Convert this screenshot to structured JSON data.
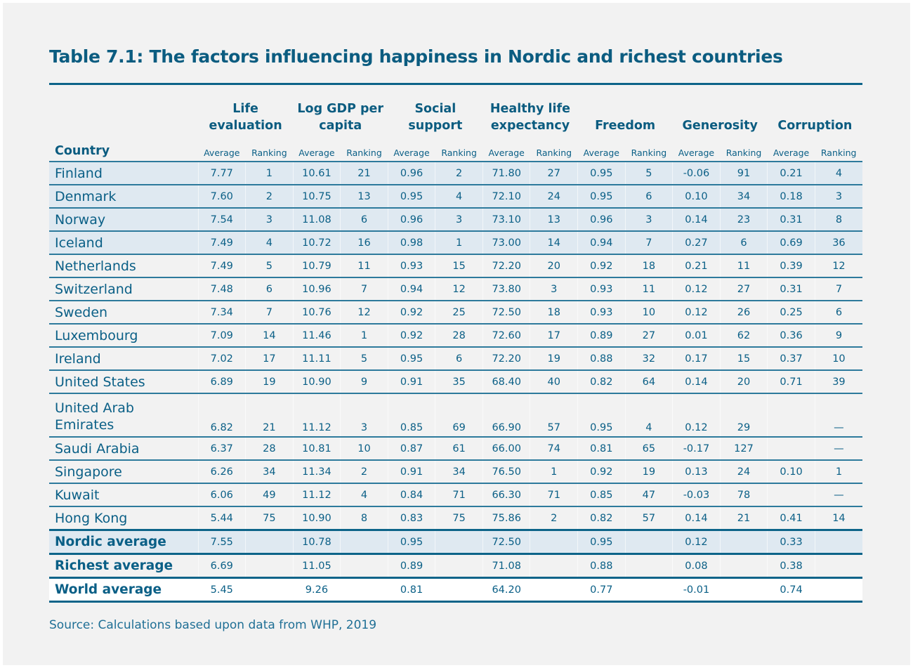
{
  "title": "Table 7.1: The factors influencing happiness in Nordic and richest countries",
  "table": {
    "country_header": "Country",
    "groups": [
      "Life evaluation",
      "Log GDP per capita",
      "Social support",
      "Healthy life expectancy",
      "Freedom",
      "Generosity",
      "Corruption"
    ],
    "subheaders": [
      "Average",
      "Ranking"
    ],
    "rows": [
      {
        "country": "Finland",
        "highlight": true,
        "values": [
          "7.77",
          "1",
          "10.61",
          "21",
          "0.96",
          "2",
          "71.80",
          "27",
          "0.95",
          "5",
          "-0.06",
          "91",
          "0.21",
          "4"
        ]
      },
      {
        "country": "Denmark",
        "highlight": true,
        "values": [
          "7.60",
          "2",
          "10.75",
          "13",
          "0.95",
          "4",
          "72.10",
          "24",
          "0.95",
          "6",
          "0.10",
          "34",
          "0.18",
          "3"
        ]
      },
      {
        "country": "Norway",
        "highlight": true,
        "values": [
          "7.54",
          "3",
          "11.08",
          "6",
          "0.96",
          "3",
          "73.10",
          "13",
          "0.96",
          "3",
          "0.14",
          "23",
          "0.31",
          "8"
        ]
      },
      {
        "country": "Iceland",
        "highlight": true,
        "values": [
          "7.49",
          "4",
          "10.72",
          "16",
          "0.98",
          "1",
          "73.00",
          "14",
          "0.94",
          "7",
          "0.27",
          "6",
          "0.69",
          "36"
        ]
      },
      {
        "country": "Netherlands",
        "values": [
          "7.49",
          "5",
          "10.79",
          "11",
          "0.93",
          "15",
          "72.20",
          "20",
          "0.92",
          "18",
          "0.21",
          "11",
          "0.39",
          "12"
        ]
      },
      {
        "country": "Switzerland",
        "values": [
          "7.48",
          "6",
          "10.96",
          "7",
          "0.94",
          "12",
          "73.80",
          "3",
          "0.93",
          "11",
          "0.12",
          "27",
          "0.31",
          "7"
        ]
      },
      {
        "country": "Sweden",
        "values": [
          "7.34",
          "7",
          "10.76",
          "12",
          "0.92",
          "25",
          "72.50",
          "18",
          "0.93",
          "10",
          "0.12",
          "26",
          "0.25",
          "6"
        ]
      },
      {
        "country": "Luxembourg",
        "values": [
          "7.09",
          "14",
          "11.46",
          "1",
          "0.92",
          "28",
          "72.60",
          "17",
          "0.89",
          "27",
          "0.01",
          "62",
          "0.36",
          "9"
        ]
      },
      {
        "country": "Ireland",
        "values": [
          "7.02",
          "17",
          "11.11",
          "5",
          "0.95",
          "6",
          "72.20",
          "19",
          "0.88",
          "32",
          "0.17",
          "15",
          "0.37",
          "10"
        ]
      },
      {
        "country": "United States",
        "values": [
          "6.89",
          "19",
          "10.90",
          "9",
          "0.91",
          "35",
          "68.40",
          "40",
          "0.82",
          "64",
          "0.14",
          "20",
          "0.71",
          "39"
        ]
      },
      {
        "country": "United Arab Emirates",
        "tall": true,
        "values": [
          "6.82",
          "21",
          "11.12",
          "3",
          "0.85",
          "69",
          "66.90",
          "57",
          "0.95",
          "4",
          "0.12",
          "29",
          "",
          "—"
        ]
      },
      {
        "country": "Saudi Arabia",
        "values": [
          "6.37",
          "28",
          "10.81",
          "10",
          "0.87",
          "61",
          "66.00",
          "74",
          "0.81",
          "65",
          "-0.17",
          "127",
          "",
          "—"
        ]
      },
      {
        "country": "Singapore",
        "values": [
          "6.26",
          "34",
          "11.34",
          "2",
          "0.91",
          "34",
          "76.50",
          "1",
          "0.92",
          "19",
          "0.13",
          "24",
          "0.10",
          "1"
        ]
      },
      {
        "country": "Kuwait",
        "values": [
          "6.06",
          "49",
          "11.12",
          "4",
          "0.84",
          "71",
          "66.30",
          "71",
          "0.85",
          "47",
          "-0.03",
          "78",
          "",
          "—"
        ]
      },
      {
        "country": "Hong Kong",
        "values": [
          "5.44",
          "75",
          "10.90",
          "8",
          "0.83",
          "75",
          "75.86",
          "2",
          "0.82",
          "57",
          "0.14",
          "21",
          "0.41",
          "14"
        ]
      }
    ],
    "summary": [
      {
        "country": "Nordic average",
        "values": [
          "7.55",
          "",
          "10.78",
          "",
          "0.95",
          "",
          "72.50",
          "",
          "0.95",
          "",
          "0.12",
          "",
          "0.33",
          ""
        ]
      },
      {
        "country": "Richest average",
        "values": [
          "6.69",
          "",
          "11.05",
          "",
          "0.89",
          "",
          "71.08",
          "",
          "0.88",
          "",
          "0.08",
          "",
          "0.38",
          ""
        ]
      },
      {
        "country": "World average",
        "values": [
          "5.45",
          "",
          "9.26",
          "",
          "0.81",
          "",
          "64.20",
          "",
          "0.77",
          "",
          "-0.01",
          "",
          "0.74",
          ""
        ]
      }
    ]
  },
  "source": "Source: Calculations based upon data from WHP, 2019",
  "colors": {
    "text": "#0a5f86",
    "highlight_row": "#dfe9f1",
    "rule": "#0d6489",
    "background": "#f2f2f2"
  }
}
